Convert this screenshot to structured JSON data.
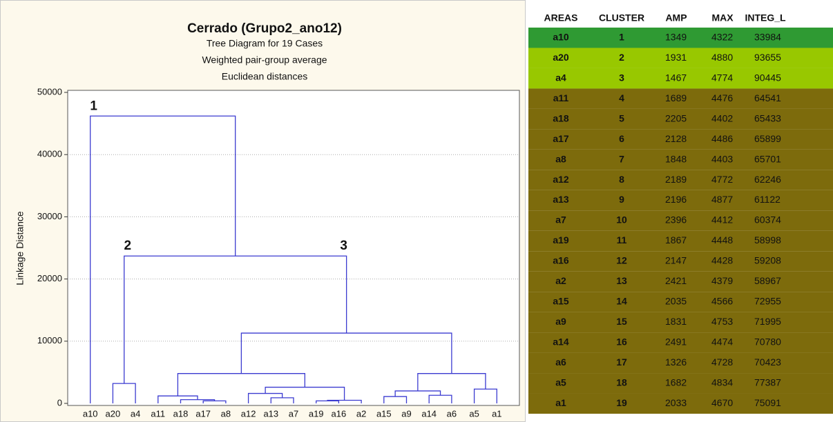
{
  "chart_data": {
    "type": "dendrogram",
    "title": "Cerrado (Grupo2_ano12)",
    "subtitles": [
      "Tree Diagram for 19 Cases",
      "Weighted pair-group average",
      "Euclidean distances"
    ],
    "y_label": "Linkage Distance",
    "categories": [
      "a10",
      "a20",
      "a4",
      "a11",
      "a18",
      "a17",
      "a8",
      "a12",
      "a13",
      "a7",
      "a19",
      "a16",
      "a2",
      "a15",
      "a9",
      "a14",
      "a6",
      "a5",
      "a1"
    ],
    "links": [
      {
        "pair": [
          5,
          6
        ],
        "height": 400
      },
      {
        "pair": [
          10,
          11
        ],
        "height": 400
      },
      {
        "pair": [
          20,
          12
        ],
        "height": 500
      },
      {
        "pair": [
          4,
          19
        ],
        "height": 600
      },
      {
        "pair": [
          8,
          9
        ],
        "height": 900
      },
      {
        "pair": [
          13,
          14
        ],
        "height": 1100
      },
      {
        "pair": [
          3,
          22
        ],
        "height": 1200
      },
      {
        "pair": [
          15,
          16
        ],
        "height": 1300
      },
      {
        "pair": [
          7,
          23
        ],
        "height": 1600
      },
      {
        "pair": [
          24,
          26
        ],
        "height": 2000
      },
      {
        "pair": [
          17,
          18
        ],
        "height": 2300
      },
      {
        "pair": [
          27,
          21
        ],
        "height": 2600
      },
      {
        "pair": [
          1,
          2
        ],
        "height": 3200
      },
      {
        "pair": [
          25,
          30
        ],
        "height": 4800
      },
      {
        "pair": [
          28,
          29
        ],
        "height": 4800
      },
      {
        "pair": [
          32,
          33
        ],
        "height": 11300
      },
      {
        "pair": [
          31,
          34
        ],
        "height": 23700,
        "left_label": "2",
        "right_label": "3"
      },
      {
        "pair": [
          0,
          35
        ],
        "height": 46200,
        "left_label": "1"
      }
    ],
    "color": "#3a3ad0",
    "ylim": [
      0,
      50000
    ],
    "yticks": [
      0,
      10000,
      20000,
      30000,
      40000,
      50000
    ],
    "grid": true
  },
  "table": {
    "columns": [
      "AREAS",
      "CLUSTER",
      "AMP",
      "MAX",
      "INTEG_L"
    ],
    "rows": [
      {
        "color": "#2f9a33",
        "cells": [
          "a10",
          1,
          1349,
          4322,
          33984
        ]
      },
      {
        "color": "#98c800",
        "cells": [
          "a20",
          2,
          1931,
          4880,
          93655
        ]
      },
      {
        "color": "#98c800",
        "cells": [
          "a4",
          3,
          1467,
          4774,
          90445
        ]
      },
      {
        "color": "#7d6b0c",
        "cells": [
          "a11",
          4,
          1689,
          4476,
          64541
        ]
      },
      {
        "color": "#7d6b0c",
        "cells": [
          "a18",
          5,
          2205,
          4402,
          65433
        ]
      },
      {
        "color": "#7d6b0c",
        "cells": [
          "a17",
          6,
          2128,
          4486,
          65899
        ]
      },
      {
        "color": "#7d6b0c",
        "cells": [
          "a8",
          7,
          1848,
          4403,
          65701
        ]
      },
      {
        "color": "#7d6b0c",
        "cells": [
          "a12",
          8,
          2189,
          4772,
          62246
        ]
      },
      {
        "color": "#7d6b0c",
        "cells": [
          "a13",
          9,
          2196,
          4877,
          61122
        ]
      },
      {
        "color": "#7d6b0c",
        "cells": [
          "a7",
          10,
          2396,
          4412,
          60374
        ]
      },
      {
        "color": "#7d6b0c",
        "cells": [
          "a19",
          11,
          1867,
          4448,
          58998
        ]
      },
      {
        "color": "#7d6b0c",
        "cells": [
          "a16",
          12,
          2147,
          4428,
          59208
        ]
      },
      {
        "color": "#7d6b0c",
        "cells": [
          "a2",
          13,
          2421,
          4379,
          58967
        ]
      },
      {
        "color": "#7d6b0c",
        "cells": [
          "a15",
          14,
          2035,
          4566,
          72955
        ]
      },
      {
        "color": "#7d6b0c",
        "cells": [
          "a9",
          15,
          1831,
          4753,
          71995
        ]
      },
      {
        "color": "#7d6b0c",
        "cells": [
          "a14",
          16,
          2491,
          4474,
          70780
        ]
      },
      {
        "color": "#7d6b0c",
        "cells": [
          "a6",
          17,
          1326,
          4728,
          70423
        ]
      },
      {
        "color": "#7d6b0c",
        "cells": [
          "a5",
          18,
          1682,
          4834,
          77387
        ]
      },
      {
        "color": "#7d6b0c",
        "cells": [
          "a1",
          19,
          2033,
          4670,
          75091
        ]
      }
    ]
  }
}
